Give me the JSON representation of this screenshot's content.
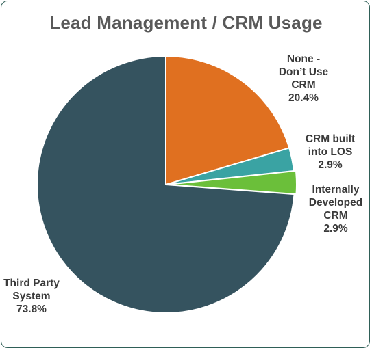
{
  "chart_data": {
    "type": "pie",
    "title": "Lead Management / CRM Usage",
    "slices": [
      {
        "label_lines": [
          "None -",
          "Don’t Use",
          "CRM"
        ],
        "value": 20.4,
        "value_label": "20.4%",
        "color": "#e07020"
      },
      {
        "label_lines": [
          "CRM built",
          "into LOS"
        ],
        "value": 2.9,
        "value_label": "2.9%",
        "color": "#3aa3a3"
      },
      {
        "label_lines": [
          "Internally",
          "Developed",
          "CRM"
        ],
        "value": 2.9,
        "value_label": "2.9%",
        "color": "#6bbf3a"
      },
      {
        "label_lines": [
          "Third Party",
          "System"
        ],
        "value": 73.8,
        "value_label": "73.8%",
        "color": "#35535f"
      }
    ],
    "legend": "none",
    "start_angle": "12 o'clock, clockwise"
  }
}
